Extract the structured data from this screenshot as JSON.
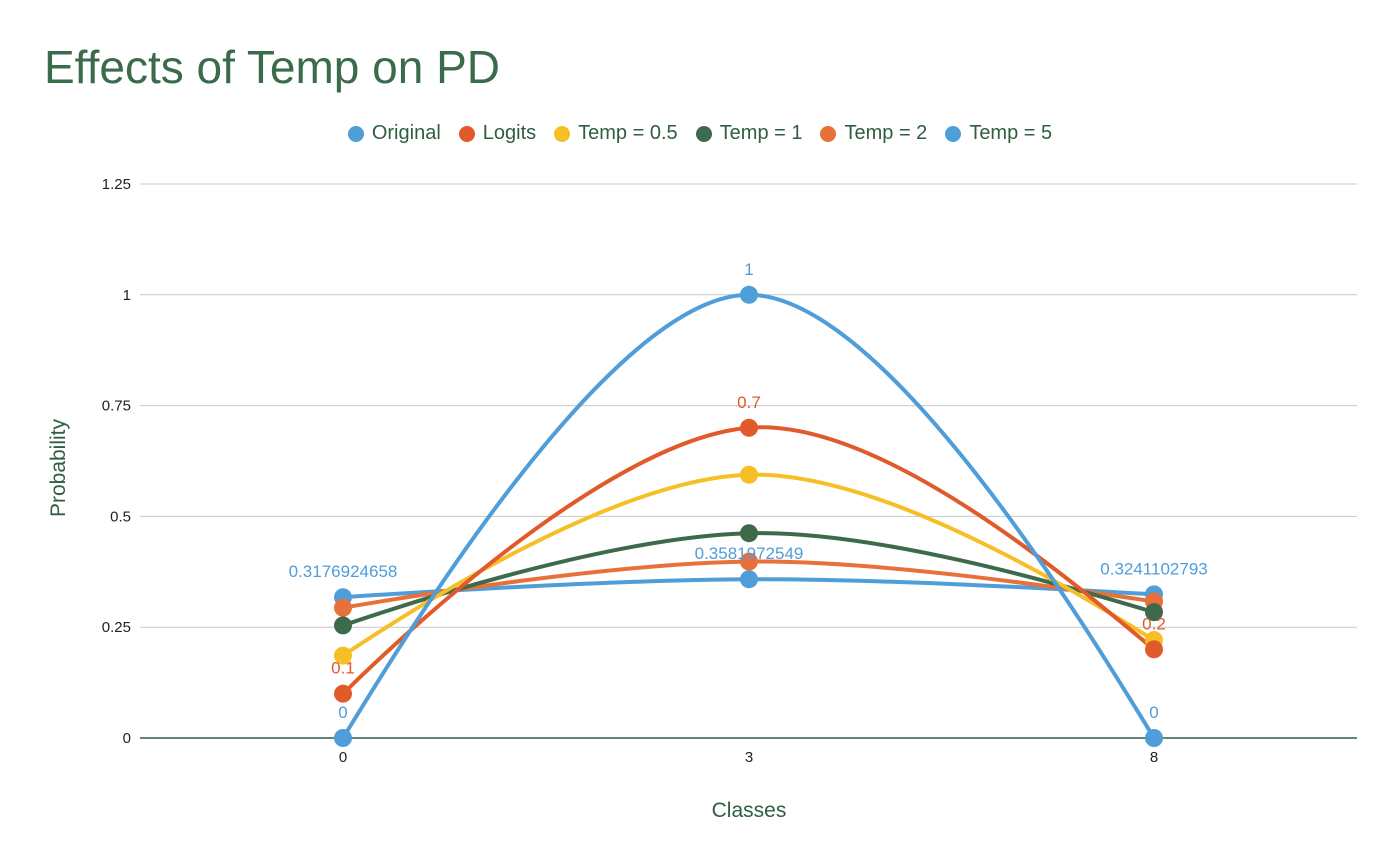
{
  "chart_data": {
    "type": "line",
    "title": "Effects of Temp on PD",
    "xlabel": "Classes",
    "ylabel": "Probability",
    "categories": [
      "0",
      "3",
      "8"
    ],
    "yticks": [
      "0",
      "0.25",
      "0.5",
      "0.75",
      "1",
      "1.25"
    ],
    "ylim": [
      0,
      1.25
    ],
    "grid": true,
    "legend_position": "top",
    "series": [
      {
        "name": "Original",
        "color": "#4f9dd9",
        "values": [
          0,
          1,
          0
        ],
        "labels": [
          "0",
          "1",
          "0"
        ]
      },
      {
        "name": "Logits",
        "color": "#e05a2b",
        "values": [
          0.1,
          0.7,
          0.2
        ],
        "labels": [
          "0.1",
          "0.7",
          "0.2"
        ]
      },
      {
        "name": "Temp = 0.5",
        "color": "#f6bf26",
        "values": [
          0.186,
          0.594,
          0.221
        ],
        "labels": [
          "",
          "",
          ""
        ]
      },
      {
        "name": "Temp = 1",
        "color": "#3e6a4c",
        "values": [
          0.254,
          0.462,
          0.284
        ],
        "labels": [
          "",
          "",
          ""
        ]
      },
      {
        "name": "Temp = 2",
        "color": "#e8703a",
        "values": [
          0.294,
          0.398,
          0.308
        ],
        "labels": [
          "",
          "",
          ""
        ]
      },
      {
        "name": "Temp = 5",
        "color": "#4f9dd9",
        "values": [
          0.3176924658,
          0.3581972549,
          0.3241102793
        ],
        "labels": [
          "0.3176924658",
          "0.3581972549",
          "0.3241102793"
        ]
      }
    ]
  }
}
